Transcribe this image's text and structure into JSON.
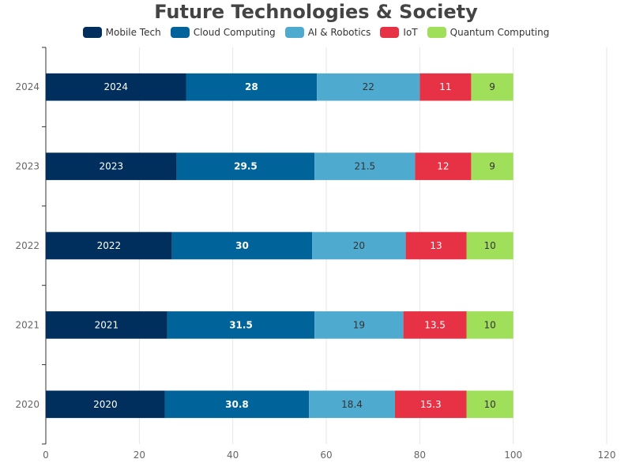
{
  "chart_data": {
    "type": "bar",
    "orientation": "horizontal",
    "stacked": true,
    "title": "Future Technologies & Society",
    "categories": [
      "2020",
      "2021",
      "2022",
      "2023",
      "2024"
    ],
    "series": [
      {
        "name": "Mobile Tech",
        "color": "#002f5e",
        "label_color": "#ffffff",
        "values": [
          25.5,
          26,
          27,
          28,
          30
        ],
        "labels": [
          "2020",
          "2021",
          "2022",
          "2023",
          "2024"
        ]
      },
      {
        "name": "Cloud Computing",
        "color": "#00649a",
        "label_color": "#ffffff",
        "values": [
          30.8,
          31.5,
          30,
          29.5,
          28
        ],
        "labels": [
          "30.8",
          "31.5",
          "30",
          "29.5",
          "28"
        ]
      },
      {
        "name": "AI & Robotics",
        "color": "#4faad0",
        "label_color": "#333333",
        "values": [
          18.4,
          19,
          20,
          21.5,
          22
        ],
        "labels": [
          "18.4",
          "19",
          "20",
          "21.5",
          "22"
        ]
      },
      {
        "name": "IoT",
        "color": "#e63244",
        "label_color": "#ffffff",
        "values": [
          15.3,
          13.5,
          13,
          12,
          11
        ],
        "labels": [
          "15.3",
          "13.5",
          "13",
          "12",
          "11"
        ]
      },
      {
        "name": "Quantum Computing",
        "color": "#a0df5a",
        "label_color": "#333333",
        "values": [
          10,
          10,
          10,
          9,
          9
        ],
        "labels": [
          "10",
          "10",
          "10",
          "9",
          "9"
        ]
      }
    ],
    "xlim": [
      0,
      120
    ],
    "xticks": [
      0,
      20,
      40,
      60,
      80,
      100,
      120
    ],
    "grid": true,
    "legend_position": "top-center"
  }
}
